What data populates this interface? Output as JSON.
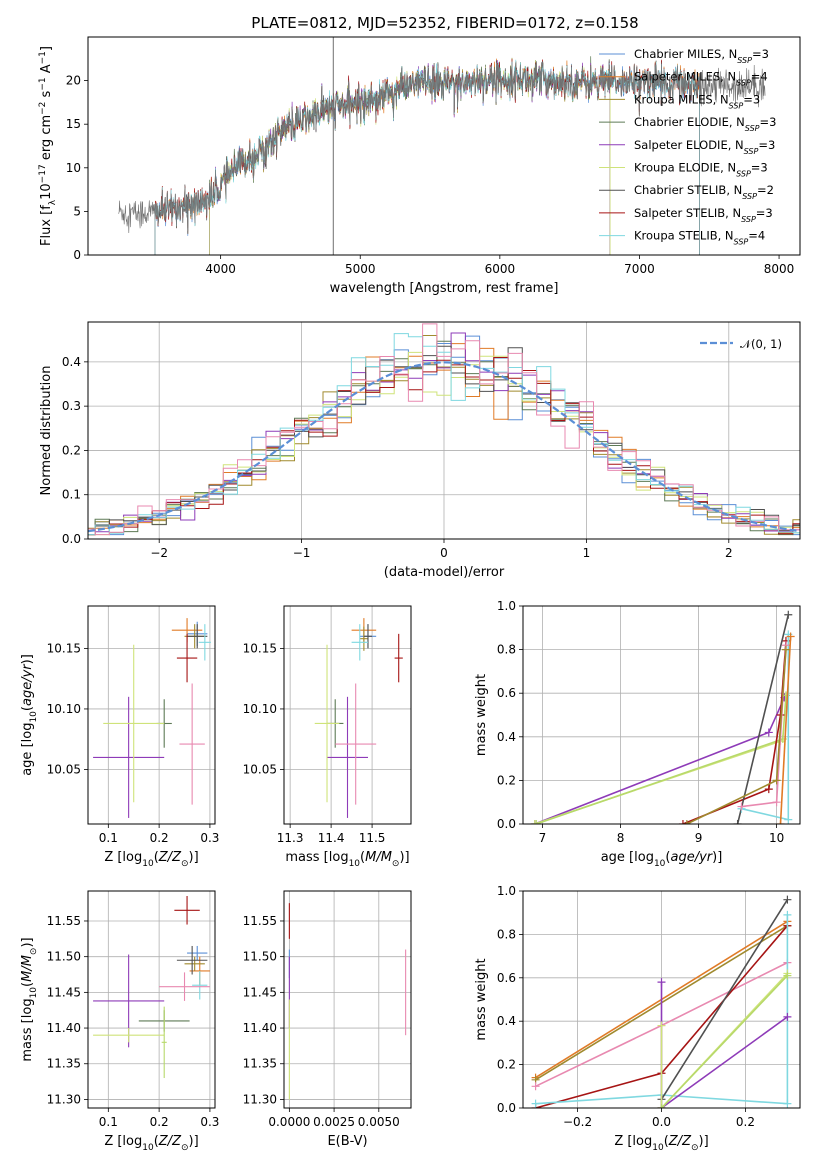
{
  "figure": {
    "title": "PLATE=0812, MJD=52352, FIBERID=0172, z=0.158"
  },
  "colors": {
    "Chabrier MILES": "#5b8fd6",
    "Salpeter MILES": "#e07b27",
    "Kroupa MILES": "#a08a2e",
    "Chabrier ELODIE": "#5e7a56",
    "Salpeter ELODIE": "#8e3bb8",
    "Kroupa ELODIE": "#cfe37a",
    "Chabrier STELIB": "#505050",
    "Salpeter STELIB": "#a61414",
    "Kroupa STELIB": "#7fd8e0",
    "Kroupa STELIB (panel)": "#7fd8e0",
    "pink": "#e889b0",
    "lime": "#b7d96a",
    "gaussian": "#5b8fd6"
  },
  "chart_data": [
    {
      "type": "line",
      "id": "spectrum",
      "xlabel": "wavelength [Angstrom, rest frame]",
      "ylabel": "Flux [f_λ 10^-17 erg cm^-2 s^-1 A^-1]",
      "xlim": [
        3050,
        8150
      ],
      "ylim": [
        0,
        25
      ],
      "xticks": [
        4000,
        5000,
        6000,
        7000,
        8000
      ],
      "yticks": [
        0,
        5,
        10,
        15,
        20
      ],
      "legend_position": "upper-right",
      "legend": [
        {
          "label": "Chabrier MILES, N",
          "sub": "SSP",
          "suffix": "=3",
          "color": "Chabrier MILES"
        },
        {
          "label": "Salpeter MILES, N",
          "sub": "SSP",
          "suffix": "=4",
          "color": "Salpeter MILES"
        },
        {
          "label": "Kroupa MILES, N",
          "sub": "SSP",
          "suffix": "=3",
          "color": "Kroupa MILES"
        },
        {
          "label": "Chabrier ELODIE, N",
          "sub": "SSP",
          "suffix": "=3",
          "color": "Chabrier ELODIE"
        },
        {
          "label": "Salpeter ELODIE, N",
          "sub": "SSP",
          "suffix": "=3",
          "color": "Salpeter ELODIE"
        },
        {
          "label": "Kroupa ELODIE, N",
          "sub": "SSP",
          "suffix": "=3",
          "color": "Kroupa ELODIE"
        },
        {
          "label": "Chabrier STELIB, N",
          "sub": "SSP",
          "suffix": "=2",
          "color": "Chabrier STELIB"
        },
        {
          "label": "Salpeter STELIB, N",
          "sub": "SSP",
          "suffix": "=3",
          "color": "Salpeter STELIB"
        },
        {
          "label": "Kroupa STELIB, N",
          "sub": "SSP",
          "suffix": "=4",
          "color": "Kroupa STELIB"
        }
      ],
      "continuum": [
        [
          3270,
          5.0
        ],
        [
          3400,
          4.8
        ],
        [
          3560,
          5.0
        ],
        [
          3700,
          5.5
        ],
        [
          3850,
          6.0
        ],
        [
          3950,
          6.8
        ],
        [
          4050,
          9.0
        ],
        [
          4150,
          10.5
        ],
        [
          4300,
          12.0
        ],
        [
          4450,
          14.5
        ],
        [
          4600,
          15.5
        ],
        [
          4800,
          17.0
        ],
        [
          5000,
          17.5
        ],
        [
          5200,
          18.5
        ],
        [
          5400,
          19.8
        ],
        [
          5600,
          19.6
        ],
        [
          5800,
          20.0
        ],
        [
          6000,
          20.2
        ],
        [
          6200,
          20.2
        ],
        [
          6400,
          20.0
        ],
        [
          6600,
          19.8
        ],
        [
          6800,
          19.8
        ],
        [
          7000,
          20.0
        ],
        [
          7200,
          19.8
        ],
        [
          7400,
          19.6
        ],
        [
          7450,
          19.5
        ]
      ],
      "model_ranges": [
        [
          3530,
          7430
        ],
        [
          3530,
          7430
        ],
        [
          3920,
          6790
        ],
        [
          3920,
          6790
        ],
        [
          3920,
          6790
        ],
        [
          3920,
          6790
        ],
        [
          3530,
          7430
        ],
        [
          3530,
          7430
        ],
        [
          3530,
          7430
        ]
      ],
      "data_range": [
        3270,
        7900
      ],
      "spikes": [
        [
          4807,
          25
        ]
      ]
    },
    {
      "type": "step",
      "id": "residuals",
      "xlabel": "(data-model)/error",
      "ylabel": "Normed distribution",
      "xlim": [
        -2.5,
        2.5
      ],
      "ylim": [
        0,
        0.49
      ],
      "xticks": [
        -2,
        -1,
        0,
        1,
        2
      ],
      "yticks": [
        0.0,
        0.1,
        0.2,
        0.3,
        0.4
      ],
      "grid": true,
      "bin_width": 0.1,
      "gaussian": {
        "label": "𝒩(0, 1)",
        "mu": 0,
        "sigma": 1
      }
    },
    {
      "type": "errorbar",
      "id": "age-vs-Z",
      "xlabel": "Z [log10(Z/Z⊙)]",
      "ylabel": "age  [log10(age/yr)]",
      "xlim": [
        0.06,
        0.31
      ],
      "ylim": [
        10.005,
        10.185
      ],
      "xticks": [
        0.1,
        0.2,
        0.3
      ],
      "yticks": [
        10.05,
        10.1,
        10.15
      ],
      "grid": true,
      "points": [
        {
          "color": "Chabrier MILES",
          "x": 0.275,
          "y": 10.162,
          "xerr": 0.02,
          "yerr": 0.01
        },
        {
          "color": "Salpeter MILES",
          "x": 0.255,
          "y": 10.165,
          "xerr": 0.03,
          "yerr": 0.01
        },
        {
          "color": "Kroupa MILES",
          "x": 0.27,
          "y": 10.16,
          "xerr": 0.02,
          "yerr": 0.01
        },
        {
          "color": "Chabrier ELODIE",
          "x": 0.21,
          "y": 10.088,
          "xerr": 0.015,
          "yerr": 0.02
        },
        {
          "color": "Salpeter ELODIE",
          "x": 0.14,
          "y": 10.06,
          "xerr": 0.07,
          "yerr": 0.05
        },
        {
          "color": "Kroupa ELODIE",
          "x": 0.15,
          "y": 10.088,
          "xerr": 0.06,
          "yerr": 0.065
        },
        {
          "color": "Chabrier STELIB",
          "x": 0.275,
          "y": 10.16,
          "xerr": 0.02,
          "yerr": 0.01
        },
        {
          "color": "Salpeter STELIB",
          "x": 0.255,
          "y": 10.142,
          "xerr": 0.02,
          "yerr": 0.02
        },
        {
          "color": "Kroupa STELIB",
          "x": 0.29,
          "y": 10.155,
          "xerr": 0.012,
          "yerr": 0.015
        },
        {
          "color": "pink",
          "x": 0.265,
          "y": 10.071,
          "xerr": 0.025,
          "yerr": 0.05
        }
      ]
    },
    {
      "type": "errorbar",
      "id": "age-vs-mass",
      "xlabel": "mass [log10(M/M⊙)]",
      "ylabel": "",
      "xlim": [
        11.285,
        11.595
      ],
      "ylim": [
        10.005,
        10.185
      ],
      "xticks": [
        11.3,
        11.4,
        11.5
      ],
      "yticks": [
        10.05,
        10.1,
        10.15
      ],
      "grid": true,
      "points": [
        {
          "color": "Chabrier MILES",
          "x": 11.49,
          "y": 10.16,
          "xerr": 0.02,
          "yerr": 0.01
        },
        {
          "color": "Salpeter MILES",
          "x": 11.48,
          "y": 10.165,
          "xerr": 0.03,
          "yerr": 0.01
        },
        {
          "color": "Kroupa MILES",
          "x": 11.48,
          "y": 10.158,
          "xerr": 0.01,
          "yerr": 0.01
        },
        {
          "color": "Chabrier ELODIE",
          "x": 11.41,
          "y": 10.088,
          "xerr": 0.02,
          "yerr": 0.02
        },
        {
          "color": "Salpeter ELODIE",
          "x": 11.44,
          "y": 10.06,
          "xerr": 0.05,
          "yerr": 0.05
        },
        {
          "color": "Kroupa ELODIE",
          "x": 11.39,
          "y": 10.088,
          "xerr": 0.03,
          "yerr": 0.065
        },
        {
          "color": "Chabrier STELIB",
          "x": 11.49,
          "y": 10.16,
          "xerr": 0.01,
          "yerr": 0.01
        },
        {
          "color": "Salpeter STELIB",
          "x": 11.565,
          "y": 10.142,
          "xerr": 0.01,
          "yerr": 0.02
        },
        {
          "color": "Kroupa STELIB",
          "x": 11.47,
          "y": 10.155,
          "xerr": 0.02,
          "yerr": 0.015
        },
        {
          "color": "pink",
          "x": 11.46,
          "y": 10.071,
          "xerr": 0.05,
          "yerr": 0.05
        }
      ]
    },
    {
      "type": "line",
      "id": "massweight-vs-age",
      "xlabel": "age  [log10(age/yr)]",
      "ylabel": "mass weight",
      "xlim": [
        6.75,
        10.3
      ],
      "ylim": [
        0,
        1
      ],
      "xticks": [
        7,
        8,
        9,
        10
      ],
      "yticks": [
        0.0,
        0.2,
        0.4,
        0.6,
        0.8,
        1.0
      ],
      "grid": true,
      "series": [
        {
          "color": "Salpeter ELODIE",
          "x": [
            6.9,
            9.9,
            10.1
          ],
          "y": [
            0.0,
            0.42,
            0.58
          ]
        },
        {
          "color": "Kroupa ELODIE",
          "x": [
            6.9,
            10.05
          ],
          "y": [
            0.0,
            0.38
          ]
        },
        {
          "color": "lime",
          "x": [
            6.92,
            10.08,
            10.12
          ],
          "y": [
            0.0,
            0.39,
            0.59
          ]
        },
        {
          "color": "Salpeter STELIB",
          "x": [
            8.8,
            9.9,
            10.05,
            10.12
          ],
          "y": [
            0.0,
            0.16,
            0.5,
            0.84
          ]
        },
        {
          "color": "Chabrier STELIB",
          "x": [
            9.5,
            10.15
          ],
          "y": [
            0.0,
            0.96
          ]
        },
        {
          "color": "Kroupa STELIB",
          "x": [
            9.55,
            10.15,
            10.15
          ],
          "y": [
            0.07,
            0.02,
            0.87
          ]
        },
        {
          "color": "pink",
          "x": [
            9.55,
            10.0,
            10.12
          ],
          "y": [
            0.08,
            0.1,
            0.82
          ]
        },
        {
          "color": "Salpeter MILES",
          "x": [
            10.05,
            10.18
          ],
          "y": [
            0.0,
            0.86
          ]
        },
        {
          "color": "Kroupa MILES",
          "x": [
            8.85,
            10.0,
            10.12
          ],
          "y": [
            0.0,
            0.2,
            0.8
          ]
        }
      ]
    },
    {
      "type": "errorbar",
      "id": "mass-vs-Z",
      "xlabel": "Z [log10(Z/Z⊙)]",
      "ylabel": "mass [log10(M/M⊙)]",
      "xlim": [
        0.06,
        0.31
      ],
      "ylim": [
        11.288,
        11.592
      ],
      "xticks": [
        0.1,
        0.2,
        0.3
      ],
      "yticks": [
        11.3,
        11.35,
        11.4,
        11.45,
        11.5,
        11.55
      ],
      "grid": true,
      "points": [
        {
          "color": "Chabrier MILES",
          "x": 0.275,
          "y": 11.505,
          "xerr": 0.02,
          "yerr": 0.01
        },
        {
          "color": "Salpeter MILES",
          "x": 0.28,
          "y": 11.48,
          "xerr": 0.02,
          "yerr": 0.02
        },
        {
          "color": "Kroupa MILES",
          "x": 0.27,
          "y": 11.49,
          "xerr": 0.02,
          "yerr": 0.01
        },
        {
          "color": "Chabrier ELODIE",
          "x": 0.21,
          "y": 11.41,
          "xerr": 0.05,
          "yerr": 0.015
        },
        {
          "color": "Salpeter ELODIE",
          "x": 0.14,
          "y": 11.438,
          "xerr": 0.07,
          "yerr": 0.065
        },
        {
          "color": "Kroupa ELODIE",
          "x": 0.14,
          "y": 11.39,
          "xerr": 0.07,
          "yerr": 0.01
        },
        {
          "color": "lime",
          "x": 0.21,
          "y": 11.38,
          "xerr": 0.005,
          "yerr": 0.05
        },
        {
          "color": "Chabrier STELIB",
          "x": 0.265,
          "y": 11.495,
          "xerr": 0.03,
          "yerr": 0.02
        },
        {
          "color": "Salpeter STELIB",
          "x": 0.255,
          "y": 11.565,
          "xerr": 0.025,
          "yerr": 0.02
        },
        {
          "color": "Kroupa STELIB",
          "x": 0.28,
          "y": 11.46,
          "xerr": 0.015,
          "yerr": 0.02
        },
        {
          "color": "pink",
          "x": 0.25,
          "y": 11.458,
          "xerr": 0.05,
          "yerr": 0.02
        }
      ]
    },
    {
      "type": "errorbar",
      "id": "mass-vs-EBV",
      "xlabel": "E(B-V)",
      "ylabel": "",
      "xlim": [
        -0.0003,
        0.0068
      ],
      "ylim": [
        11.288,
        11.592
      ],
      "xticks": [
        0.0,
        0.0025,
        0.005
      ],
      "xticklabels": [
        "0.0000",
        "0.0025",
        "0.0050"
      ],
      "yticks": [
        11.3,
        11.35,
        11.4,
        11.45,
        11.5,
        11.55
      ],
      "grid": true,
      "points": [
        {
          "color": "Salpeter STELIB",
          "x": 0.0,
          "y": 11.55,
          "xerr": 0,
          "yerr": 0.025
        },
        {
          "color": "Chabrier MILES",
          "x": 0.0,
          "y": 11.49,
          "xerr": 0,
          "yerr": 0.02
        },
        {
          "color": "Salpeter ELODIE",
          "x": 0.0,
          "y": 11.45,
          "xerr": 0,
          "yerr": 0.05
        },
        {
          "color": "Kroupa ELODIE",
          "x": 0.0,
          "y": 11.37,
          "xerr": 0,
          "yerr": 0.07
        },
        {
          "color": "pink",
          "x": 0.0065,
          "y": 11.45,
          "xerr": 0,
          "yerr": 0.06
        }
      ]
    },
    {
      "type": "line",
      "id": "massweight-vs-Z",
      "xlabel": "Z [log10(Z/Z⊙)]",
      "ylabel": "mass weight",
      "xlim": [
        -0.33,
        0.33
      ],
      "ylim": [
        0,
        1
      ],
      "xticks": [
        -0.2,
        0.0,
        0.2
      ],
      "yticks": [
        0.0,
        0.2,
        0.4,
        0.6,
        0.8,
        1.0
      ],
      "grid": true,
      "series": [
        {
          "color": "Salpeter MILES",
          "x": [
            -0.3,
            0.3
          ],
          "y": [
            0.14,
            0.86
          ]
        },
        {
          "color": "Kroupa MILES",
          "x": [
            -0.3,
            0.3
          ],
          "y": [
            0.13,
            0.84
          ]
        },
        {
          "color": "pink",
          "x": [
            -0.3,
            0.0,
            0.3
          ],
          "y": [
            0.1,
            0.38,
            0.67
          ]
        },
        {
          "color": "Salpeter STELIB",
          "x": [
            -0.3,
            0.0,
            0.3
          ],
          "y": [
            0.0,
            0.16,
            0.84
          ]
        },
        {
          "color": "Kroupa STELIB",
          "x": [
            -0.3,
            0.0,
            0.3,
            0.3
          ],
          "y": [
            0.02,
            0.06,
            0.02,
            0.89
          ]
        },
        {
          "color": "Chabrier STELIB",
          "x": [
            0.0,
            0.3
          ],
          "y": [
            0.04,
            0.96
          ]
        },
        {
          "color": "Salpeter ELODIE",
          "x": [
            0.0,
            0.0,
            0.0,
            0.3
          ],
          "y": [
            0.58,
            0.0,
            0.0,
            0.42
          ]
        },
        {
          "color": "Kroupa ELODIE",
          "x": [
            0.0,
            0.0,
            0.3
          ],
          "y": [
            0.38,
            0.0,
            0.62
          ]
        },
        {
          "color": "lime",
          "x": [
            0.0,
            0.3
          ],
          "y": [
            0.0,
            0.61
          ]
        }
      ]
    }
  ]
}
